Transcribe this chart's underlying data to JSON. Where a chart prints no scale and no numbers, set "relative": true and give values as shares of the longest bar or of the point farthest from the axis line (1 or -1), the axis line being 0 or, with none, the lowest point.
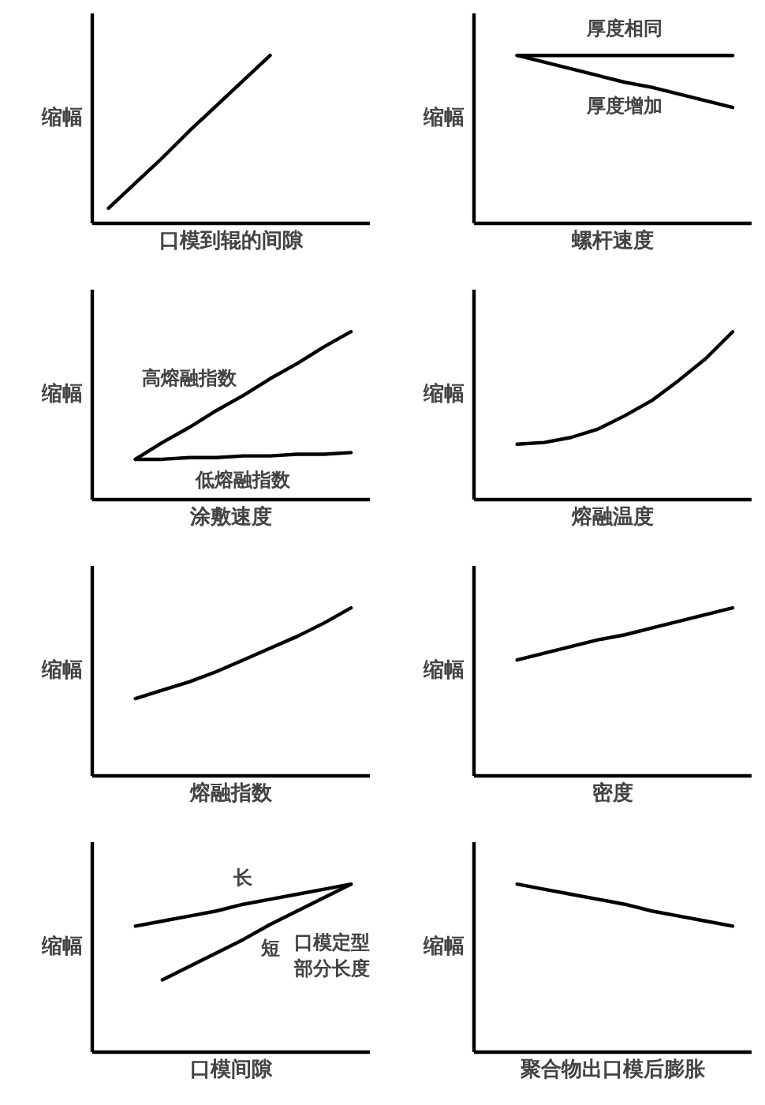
{
  "chart_data": [
    {
      "type": "line",
      "relative": true,
      "xlabel": "口模到辊的间隙",
      "ylabel": "缩幅",
      "tick_labels": false,
      "categories": [
        null,
        null,
        null,
        null,
        null,
        null,
        null,
        null,
        null,
        null
      ],
      "series": [
        {
          "color": "#000000",
          "values": [
            0.09,
            0.24,
            0.39,
            0.55,
            0.7,
            0.85,
            1.0,
            null,
            null,
            null
          ]
        }
      ]
    },
    {
      "type": "line",
      "relative": true,
      "xlabel": "螺杆速度",
      "ylabel": "缩幅",
      "tick_labels": false,
      "categories": [
        null,
        null,
        null,
        null,
        null,
        null,
        null,
        null,
        null,
        null
      ],
      "series": [
        {
          "name": "厚度相同",
          "color": "#000000",
          "values": [
            null,
            1.0,
            1.0,
            1.0,
            1.0,
            1.0,
            1.0,
            1.0,
            1.0,
            1.0
          ]
        },
        {
          "name": "厚度增加",
          "color": "#000000",
          "values": [
            null,
            1.0,
            0.96,
            0.92,
            0.88,
            0.84,
            0.81,
            0.77,
            0.73,
            0.69
          ]
        }
      ]
    },
    {
      "type": "line",
      "relative": true,
      "xlabel": "涂敷速度",
      "ylabel": "缩幅",
      "tick_labels": false,
      "categories": [
        null,
        null,
        null,
        null,
        null,
        null,
        null,
        null,
        null,
        null
      ],
      "series": [
        {
          "name": "高熔融指数",
          "color": "#000000",
          "values": [
            null,
            0.24,
            0.34,
            0.43,
            0.53,
            0.62,
            0.72,
            0.81,
            0.91,
            1.0
          ]
        },
        {
          "name": "低熔融指数",
          "color": "#000000",
          "values": [
            null,
            0.24,
            0.24,
            0.25,
            0.25,
            0.26,
            0.26,
            0.27,
            0.27,
            0.28
          ]
        }
      ]
    },
    {
      "type": "line",
      "relative": true,
      "xlabel": "熔融温度",
      "ylabel": "缩幅",
      "tick_labels": false,
      "categories": [
        null,
        null,
        null,
        null,
        null,
        null,
        null,
        null,
        null,
        null
      ],
      "series": [
        {
          "color": "#000000",
          "values": [
            null,
            0.33,
            0.34,
            0.37,
            0.42,
            0.5,
            0.59,
            0.71,
            0.84,
            1.0
          ]
        }
      ]
    },
    {
      "type": "line",
      "relative": true,
      "xlabel": "熔融指数",
      "ylabel": "缩幅",
      "tick_labels": false,
      "categories": [
        null,
        null,
        null,
        null,
        null,
        null,
        null,
        null,
        null,
        null
      ],
      "series": [
        {
          "color": "#000000",
          "values": [
            null,
            0.46,
            0.51,
            0.56,
            0.62,
            0.69,
            0.76,
            0.83,
            0.91,
            1.0
          ]
        }
      ]
    },
    {
      "type": "line",
      "relative": true,
      "xlabel": "密度",
      "ylabel": "缩幅",
      "tick_labels": false,
      "categories": [
        null,
        null,
        null,
        null,
        null,
        null,
        null,
        null,
        null,
        null
      ],
      "series": [
        {
          "color": "#000000",
          "values": [
            null,
            0.69,
            0.73,
            0.77,
            0.81,
            0.84,
            0.88,
            0.92,
            0.96,
            1.0
          ]
        }
      ]
    },
    {
      "type": "line",
      "relative": true,
      "xlabel": "口模间隙",
      "ylabel": "缩幅",
      "tick_labels": false,
      "annotations": [
        "口模定型部分长度"
      ],
      "categories": [
        null,
        null,
        null,
        null,
        null,
        null,
        null,
        null,
        null,
        null
      ],
      "series": [
        {
          "name": "长",
          "color": "#000000",
          "values": [
            null,
            0.75,
            0.78,
            0.81,
            0.84,
            0.88,
            0.91,
            0.94,
            0.97,
            1.0
          ]
        },
        {
          "name": "短",
          "color": "#000000",
          "values": [
            null,
            null,
            0.43,
            0.51,
            0.59,
            0.67,
            0.76,
            0.84,
            0.92,
            1.0
          ]
        }
      ]
    },
    {
      "type": "line",
      "relative": true,
      "xlabel": "聚合物出口模后膨胀",
      "ylabel": "缩幅",
      "tick_labels": false,
      "categories": [
        null,
        null,
        null,
        null,
        null,
        null,
        null,
        null,
        null,
        null
      ],
      "series": [
        {
          "color": "#000000",
          "values": [
            null,
            1.0,
            0.97,
            0.94,
            0.91,
            0.88,
            0.84,
            0.81,
            0.78,
            0.75
          ]
        }
      ]
    }
  ]
}
